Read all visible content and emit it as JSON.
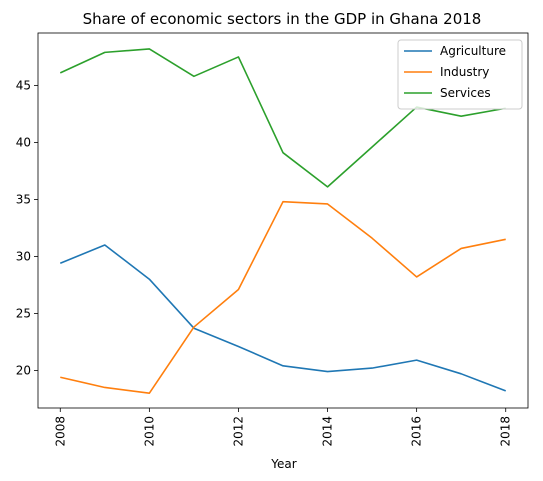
{
  "chart_data": {
    "type": "line",
    "title": "Share of economic sectors in the GDP in Ghana 2018",
    "xlabel": "Year",
    "ylabel": "",
    "x": [
      2008,
      2009,
      2010,
      2011,
      2012,
      2013,
      2014,
      2015,
      2016,
      2017,
      2018
    ],
    "xticks": [
      2008,
      2010,
      2012,
      2014,
      2016,
      2018
    ],
    "yticks": [
      20,
      25,
      30,
      35,
      40,
      45
    ],
    "xlim": [
      2007.5,
      2018.5
    ],
    "ylim": [
      16.7,
      49.6
    ],
    "grid": false,
    "legend_position": "top-right",
    "series": [
      {
        "name": "Agriculture",
        "color": "#1f77b4",
        "values": [
          29.4,
          31.0,
          28.0,
          23.7,
          22.1,
          20.4,
          19.9,
          20.2,
          20.9,
          19.7,
          18.2
        ]
      },
      {
        "name": "Industry",
        "color": "#ff7f0e",
        "values": [
          19.4,
          18.5,
          18.0,
          23.8,
          27.1,
          34.8,
          34.6,
          31.6,
          28.2,
          30.7,
          31.5
        ]
      },
      {
        "name": "Services",
        "color": "#2ca02c",
        "values": [
          46.1,
          47.9,
          48.2,
          45.8,
          47.5,
          39.1,
          36.1,
          39.6,
          43.1,
          42.3,
          43.0
        ]
      }
    ]
  }
}
